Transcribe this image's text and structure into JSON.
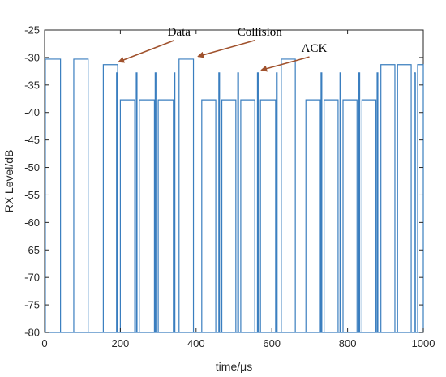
{
  "chart_data": {
    "type": "line",
    "xlabel": "time/μs",
    "ylabel": "RX Level/dB",
    "xlim": [
      0,
      1000
    ],
    "ylim": [
      -80,
      -25
    ],
    "xticks": [
      0,
      200,
      400,
      600,
      800,
      1000
    ],
    "yticks": [
      -25,
      -30,
      -35,
      -40,
      -45,
      -50,
      -55,
      -60,
      -65,
      -70,
      -75,
      -80
    ],
    "grid": false,
    "colors": {
      "line": "#3a7ebf",
      "axes": "#262626",
      "arrow": "#a0522d"
    },
    "pulses": [
      {
        "start": 2,
        "end": 42,
        "level": -30.3
      },
      {
        "start": 77,
        "end": 115,
        "level": -30.3
      },
      {
        "start": 155,
        "end": 193,
        "level": -31.3
      },
      {
        "start": 190,
        "end": 192,
        "level": -32.8
      },
      {
        "start": 200,
        "end": 238,
        "level": -37.7
      },
      {
        "start": 242,
        "end": 244,
        "level": -32.8
      },
      {
        "start": 250,
        "end": 290,
        "level": -37.7
      },
      {
        "start": 292,
        "end": 294,
        "level": -32.8
      },
      {
        "start": 300,
        "end": 340,
        "level": -37.7
      },
      {
        "start": 342,
        "end": 344,
        "level": -32.8
      },
      {
        "start": 355,
        "end": 393,
        "level": -30.3
      },
      {
        "start": 415,
        "end": 452,
        "level": -37.7
      },
      {
        "start": 460,
        "end": 462,
        "level": -32.8
      },
      {
        "start": 468,
        "end": 505,
        "level": -37.7
      },
      {
        "start": 510,
        "end": 512,
        "level": -32.8
      },
      {
        "start": 518,
        "end": 555,
        "level": -37.7
      },
      {
        "start": 562,
        "end": 564,
        "level": -32.8
      },
      {
        "start": 570,
        "end": 610,
        "level": -37.7
      },
      {
        "start": 612,
        "end": 614,
        "level": -32.8
      },
      {
        "start": 625,
        "end": 662,
        "level": -30.3
      },
      {
        "start": 690,
        "end": 728,
        "level": -37.7
      },
      {
        "start": 730,
        "end": 732,
        "level": -32.8
      },
      {
        "start": 738,
        "end": 775,
        "level": -37.7
      },
      {
        "start": 780,
        "end": 782,
        "level": -32.8
      },
      {
        "start": 788,
        "end": 825,
        "level": -37.7
      },
      {
        "start": 830,
        "end": 832,
        "level": -32.8
      },
      {
        "start": 838,
        "end": 875,
        "level": -37.7
      },
      {
        "start": 878,
        "end": 880,
        "level": -32.8
      },
      {
        "start": 888,
        "end": 925,
        "level": -31.3
      },
      {
        "start": 932,
        "end": 968,
        "level": -31.3
      },
      {
        "start": 976,
        "end": 979,
        "level": -32.8
      },
      {
        "start": 985,
        "end": 1000,
        "level": -31.3
      }
    ],
    "baseline": -80,
    "annotations": [
      {
        "text": "Data",
        "text_x": 355,
        "text_y": -26,
        "arrow_to_x": 195,
        "arrow_to_y": -30.8
      },
      {
        "text": "Collision",
        "text_x": 568,
        "text_y": -26,
        "arrow_to_x": 405,
        "arrow_to_y": -29.8
      },
      {
        "text": "ACK",
        "text_x": 712,
        "text_y": -29.0,
        "arrow_to_x": 572,
        "arrow_to_y": -32.3
      }
    ]
  }
}
